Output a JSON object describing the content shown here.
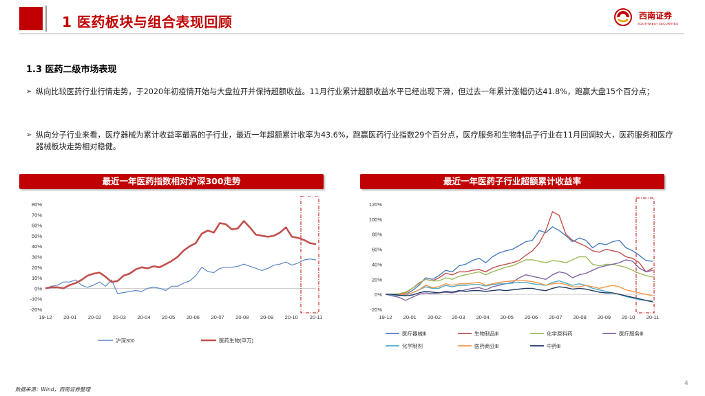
{
  "header": {
    "title": "1 医药板块与组合表现回顾"
  },
  "logo": {
    "name": "西南证券",
    "sub": "SOUTHWEST SECURITIES"
  },
  "section": {
    "title": "1.3 医药二级市场表现"
  },
  "bullets": [
    "纵向比较医药行业行情走势，于2020年初疫情开始与大盘拉开并保持超额收益。11月行业累计超额收益水平已经出现下滑，但过去一年累计涨幅仍达41.8%，跑赢大盘15个百分点；",
    "纵向分子行业来看，医疗器械为累计收益率最高的子行业，最近一年超额累计收率为43.6%，跑赢医药行业指数29个百分点，医疗服务和生物制品子行业在11月回调较大，医药服务和医疗器械板块走势相对稳健。"
  ],
  "bullet_marker": "➢",
  "footer": {
    "source": "数据来源：Wind，西南证券整理",
    "page": "4"
  },
  "chart_data": [
    {
      "type": "line",
      "title": "最近一年医药指数相对沪深300走势",
      "ylim": [
        -20,
        80
      ],
      "yticks": [
        "80%",
        "70%",
        "60%",
        "50%",
        "40%",
        "30%",
        "20%",
        "10%",
        "0%",
        "-10%",
        "-20%"
      ],
      "xticks": [
        "19-12",
        "20-01",
        "20-02",
        "20-03",
        "20-04",
        "20-05",
        "20-06",
        "20-07",
        "20-08",
        "20-09",
        "20-10",
        "20-11"
      ],
      "series": [
        {
          "name": "沪深300",
          "color": "#5b87c5",
          "width": 1.2,
          "values": [
            0,
            2,
            3,
            6,
            6,
            8,
            3,
            1,
            3,
            6,
            2,
            8,
            -5,
            -4,
            -3,
            -2,
            -3,
            0,
            1,
            0,
            -2,
            2,
            2,
            5,
            7,
            12,
            20,
            16,
            15,
            19,
            20,
            20,
            21,
            23,
            21,
            19,
            17,
            19,
            22,
            23,
            25,
            22,
            24,
            27,
            28,
            27
          ]
        },
        {
          "name": "医药生物(申万)",
          "color": "#c0504d",
          "width": 2.6,
          "values": [
            0,
            1,
            1,
            0,
            3,
            5,
            8,
            12,
            14,
            15,
            11,
            6,
            7,
            12,
            14,
            18,
            20,
            19,
            21,
            20,
            23,
            26,
            30,
            36,
            40,
            43,
            52,
            55,
            53,
            62,
            61,
            56,
            57,
            64,
            58,
            51,
            50,
            49,
            50,
            53,
            58,
            49,
            48,
            46,
            43,
            42
          ]
        }
      ]
    },
    {
      "type": "line",
      "title": "最近一年医药子行业超额累计收益率",
      "ylim": [
        -20,
        120
      ],
      "yticks": [
        "120%",
        "100%",
        "80%",
        "60%",
        "40%",
        "20%",
        "0%",
        "-20%"
      ],
      "xticks": [
        "19-12",
        "20-01",
        "20-02",
        "20-03",
        "20-04",
        "20-05",
        "20-06",
        "20-07",
        "20-08",
        "20-09",
        "20-10",
        "20-11"
      ],
      "series": [
        {
          "name": "医疗器械Ⅲ",
          "color": "#4a7ebb",
          "values": [
            0,
            -1,
            -2,
            0,
            5,
            12,
            22,
            20,
            25,
            32,
            30,
            38,
            40,
            45,
            48,
            42,
            50,
            55,
            58,
            60,
            65,
            70,
            72,
            85,
            82,
            90,
            85,
            78,
            70,
            75,
            72,
            62,
            68,
            66,
            70,
            72,
            62,
            58,
            52,
            45,
            44
          ]
        },
        {
          "name": "生物制品Ⅲ",
          "color": "#c0504d",
          "values": [
            0,
            -1,
            -1,
            2,
            8,
            15,
            20,
            18,
            22,
            28,
            26,
            30,
            30,
            32,
            33,
            30,
            35,
            38,
            40,
            42,
            45,
            52,
            58,
            68,
            85,
            110,
            105,
            80,
            72,
            68,
            64,
            58,
            56,
            60,
            58,
            56,
            50,
            48,
            42,
            30,
            35
          ]
        },
        {
          "name": "化学原料药",
          "color": "#9bbb59",
          "values": [
            0,
            0,
            1,
            3,
            8,
            14,
            20,
            18,
            18,
            22,
            20,
            24,
            26,
            28,
            30,
            26,
            30,
            33,
            36,
            38,
            42,
            46,
            46,
            44,
            42,
            45,
            44,
            42,
            46,
            50,
            50,
            40,
            38,
            40,
            40,
            38,
            36,
            32,
            28,
            25,
            23
          ]
        },
        {
          "name": "医疗服务Ⅲ",
          "color": "#8064a2",
          "values": [
            0,
            -2,
            -4,
            -8,
            -4,
            0,
            2,
            1,
            2,
            3,
            2,
            4,
            6,
            8,
            9,
            6,
            10,
            12,
            14,
            16,
            22,
            26,
            24,
            22,
            20,
            26,
            30,
            28,
            22,
            26,
            28,
            32,
            36,
            38,
            40,
            42,
            46,
            44,
            35,
            30,
            32
          ]
        },
        {
          "name": "化学制剂",
          "color": "#4bacc6",
          "values": [
            0,
            -1,
            -2,
            -1,
            2,
            6,
            10,
            8,
            8,
            12,
            10,
            12,
            12,
            13,
            13,
            11,
            13,
            14,
            14,
            15,
            16,
            16,
            14,
            13,
            12,
            16,
            18,
            15,
            12,
            14,
            12,
            8,
            6,
            4,
            2,
            0,
            -3,
            -5,
            -7,
            -8,
            -9
          ]
        },
        {
          "name": "医药商业Ⅲ",
          "color": "#f79646",
          "values": [
            0,
            0,
            -1,
            0,
            2,
            6,
            12,
            9,
            10,
            14,
            12,
            14,
            14,
            15,
            16,
            12,
            14,
            16,
            17,
            18,
            19,
            18,
            17,
            15,
            12,
            14,
            15,
            13,
            10,
            10,
            12,
            10,
            8,
            10,
            12,
            10,
            6,
            4,
            2,
            0,
            -2
          ]
        },
        {
          "name": "中药Ⅲ",
          "color": "#1f3864",
          "values": [
            0,
            0,
            -1,
            -2,
            -1,
            2,
            4,
            3,
            2,
            4,
            3,
            5,
            4,
            5,
            5,
            4,
            5,
            6,
            5,
            6,
            7,
            8,
            8,
            6,
            5,
            8,
            10,
            9,
            7,
            8,
            7,
            5,
            3,
            2,
            2,
            0,
            -2,
            -4,
            -6,
            -8,
            -10
          ]
        }
      ]
    }
  ]
}
